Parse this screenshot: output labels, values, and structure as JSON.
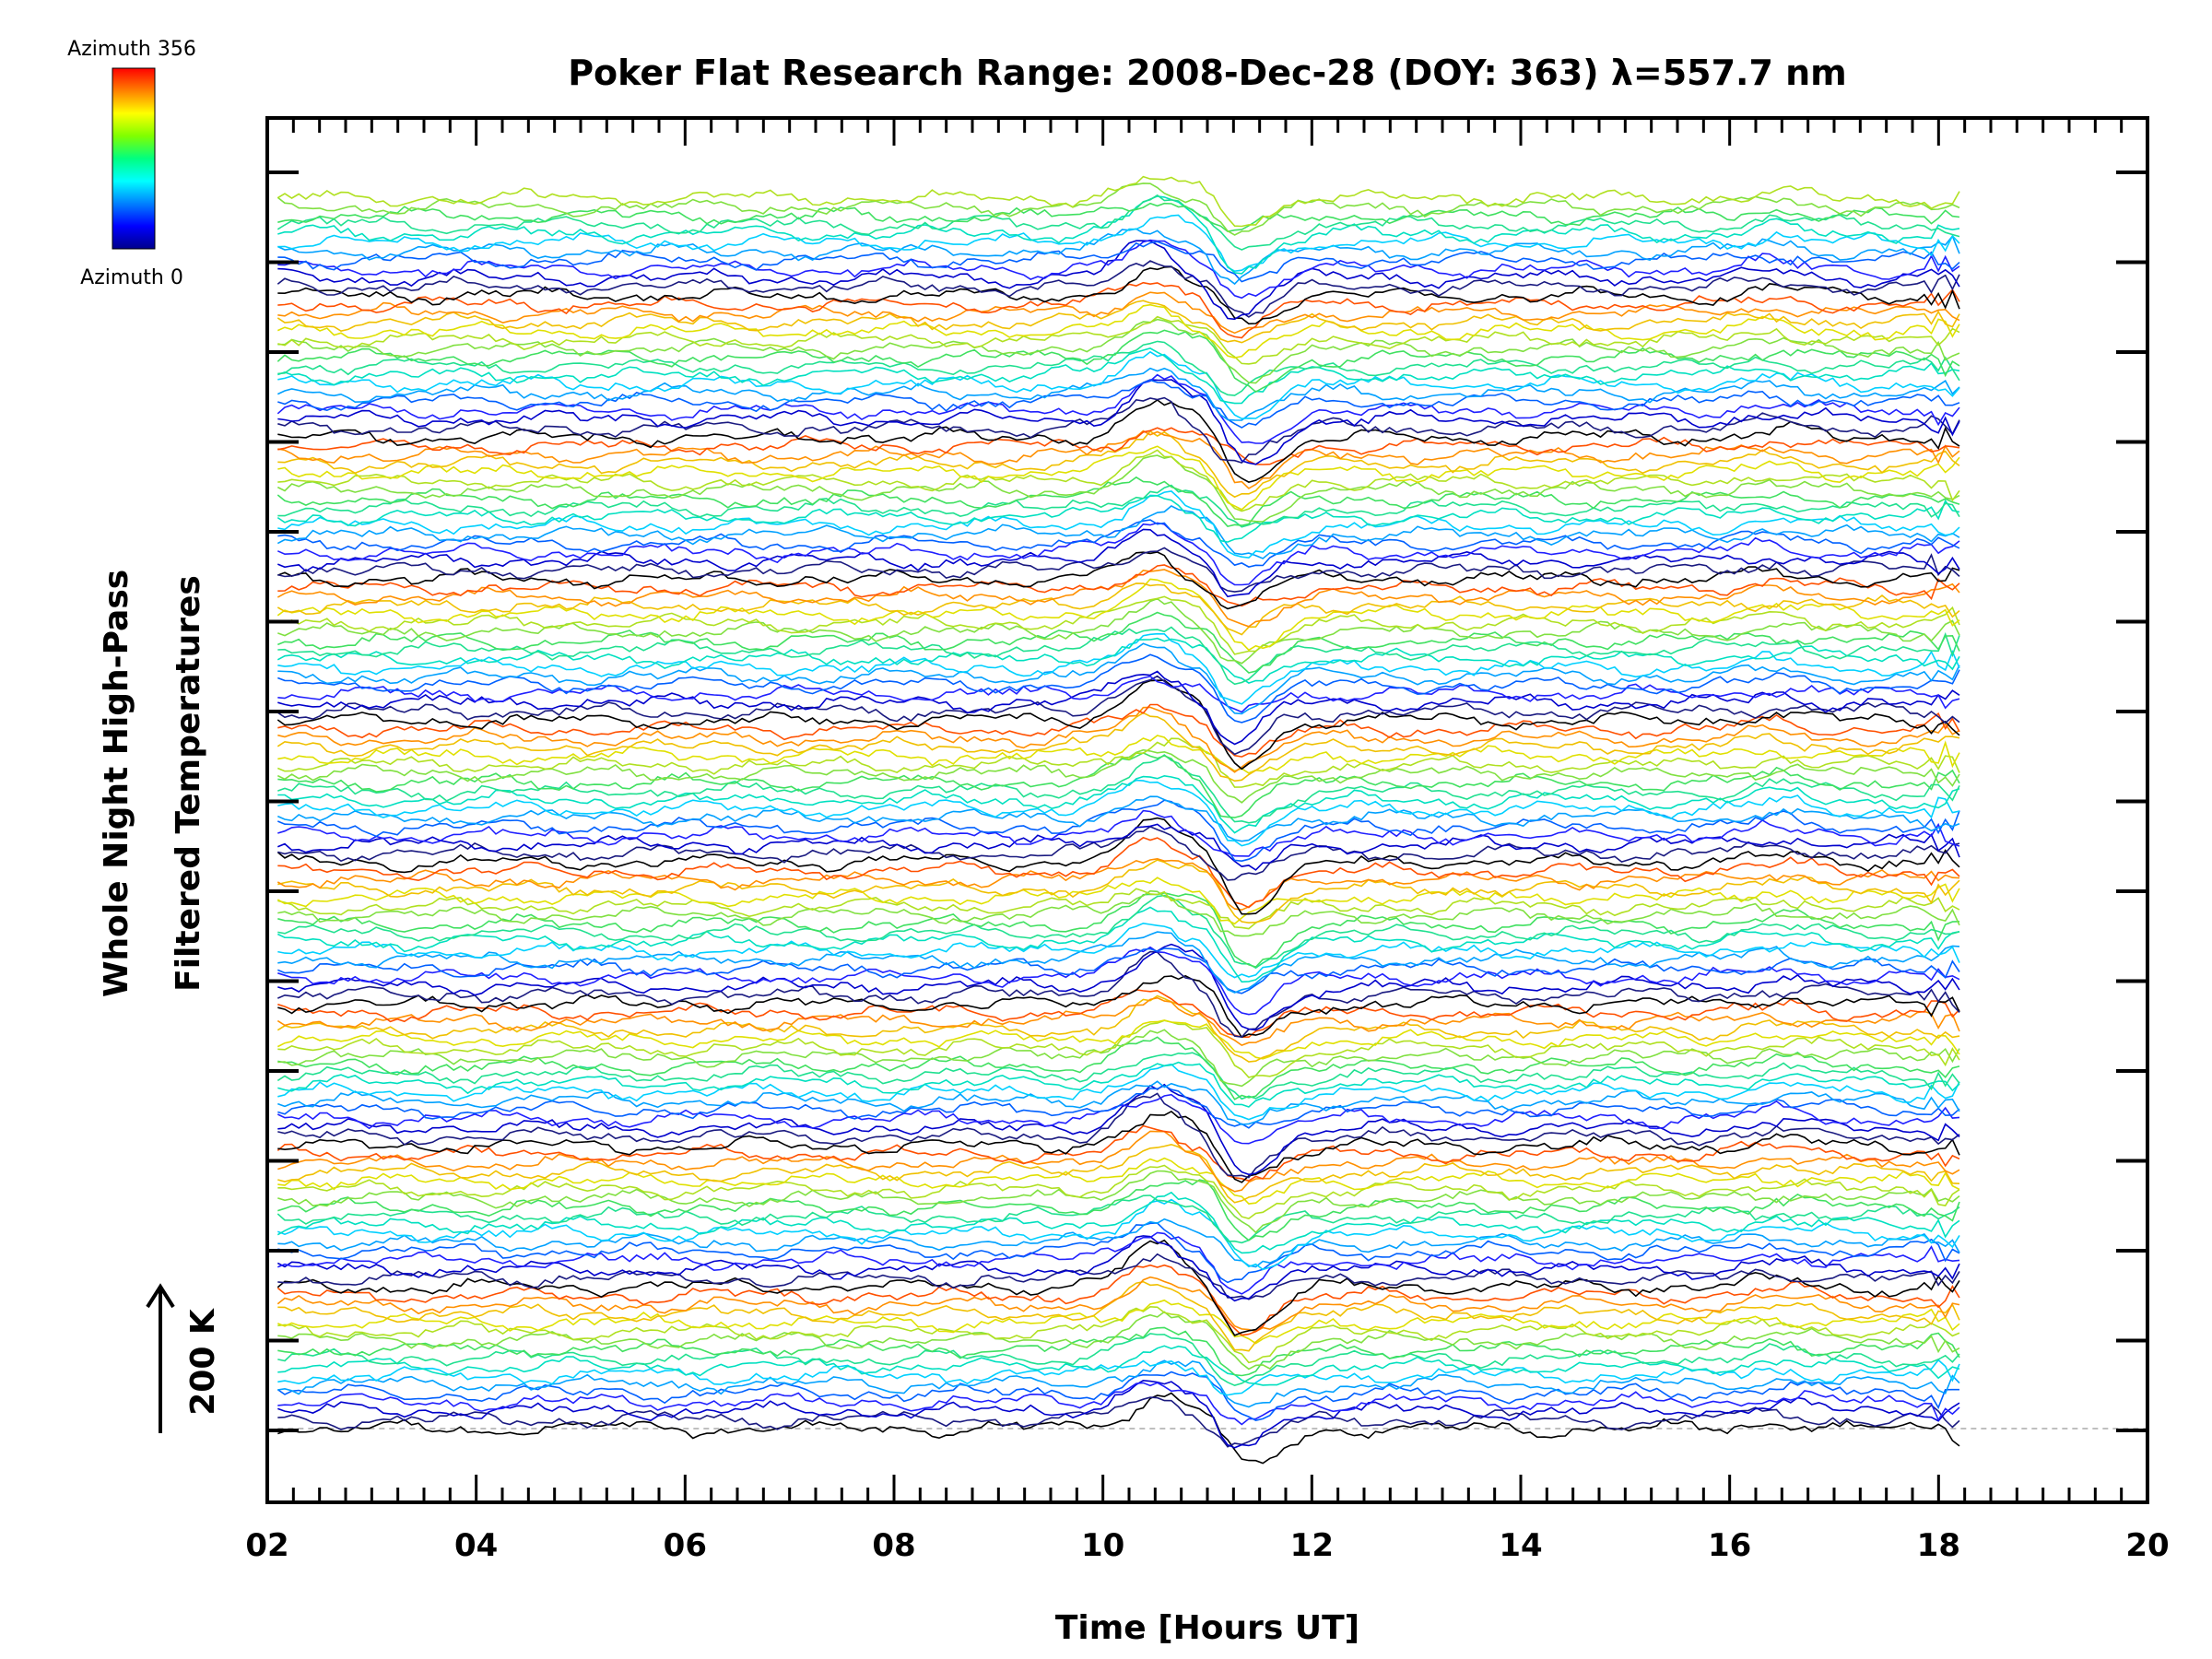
{
  "chart_data": {
    "type": "line",
    "title": "Poker Flat Research Range: 2008-Dec-28 (DOY: 363) λ=557.7 nm",
    "xlabel": "Time [Hours UT]",
    "ylabel_lines": [
      "Whole Night High-Pass",
      "Filtered Temperatures"
    ],
    "scale_bar_label": "200 K",
    "xlim": [
      2,
      20
    ],
    "x_tick_labels": [
      "02",
      "04",
      "06",
      "08",
      "10",
      "12",
      "14",
      "16",
      "18",
      "20"
    ],
    "data_time_range": [
      2.1,
      18.2
    ],
    "colorbar": {
      "top_label": "Azimuth 356",
      "bottom_label": "Azimuth 0",
      "colors": [
        "#ff0000",
        "#ff8000",
        "#ffff00",
        "#80ff00",
        "#00ff80",
        "#00ffff",
        "#0080ff",
        "#0000ff",
        "#00008b"
      ]
    },
    "series_summary": {
      "trace_count": 140,
      "azimuth_min": 0,
      "azimuth_max": 356,
      "feature_peak_time_hours": 10.55,
      "feature_dip_time_hours": 11.3
    },
    "trace_color_cycle": [
      "#000000",
      "#1a1a80",
      "#0000cc",
      "#2020ff",
      "#0060ff",
      "#00a0ff",
      "#00d0ff",
      "#00e0c0",
      "#20e090",
      "#40e060",
      "#80e040",
      "#b0e020",
      "#e0e000",
      "#f0c000",
      "#ff9000",
      "#ff5000"
    ],
    "grid": false,
    "baseline_style": "dashed"
  }
}
